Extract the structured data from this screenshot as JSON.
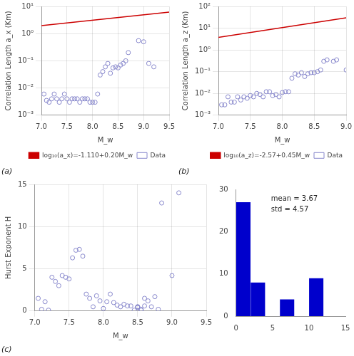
{
  "chart_data": [
    {
      "type": "scatter",
      "xlabel": "M_w",
      "ylabel": "Correlation Length a_x (Km)",
      "log": "y",
      "xlim": [
        7.0,
        9.5
      ],
      "xticks": [
        {
          "value": 7,
          "label": "7.0"
        },
        {
          "value": 7.5,
          "label": "7.5"
        },
        {
          "value": 8,
          "label": "8.0"
        },
        {
          "value": 8.5,
          "label": "8.5"
        },
        {
          "value": 9,
          "label": "9.0"
        },
        {
          "value": 9.5,
          "label": "9.5"
        }
      ],
      "ylim": [
        0.001,
        10
      ],
      "yticks": [
        {
          "value": 0.001,
          "label": "10⁻³"
        },
        {
          "value": 0.01,
          "label": "10⁻²"
        },
        {
          "value": 0.1,
          "label": "10⁻¹"
        },
        {
          "value": 1,
          "label": "10⁰"
        },
        {
          "value": 10,
          "label": "10¹"
        }
      ],
      "grid": true,
      "legend": "lower right",
      "annotations": [
        "(a)"
      ],
      "series": [
        {
          "name": "Data",
          "type": "scatter",
          "marker": "circle",
          "color": "#8888cc",
          "x": [
            7.05,
            7.1,
            7.15,
            7.2,
            7.25,
            7.3,
            7.35,
            7.4,
            7.45,
            7.5,
            7.55,
            7.6,
            7.65,
            7.7,
            7.75,
            7.8,
            7.85,
            7.9,
            7.95,
            8.0,
            8.05,
            8.1,
            8.15,
            8.2,
            8.25,
            8.3,
            8.35,
            8.4,
            8.45,
            8.5,
            8.55,
            8.6,
            8.65,
            8.7,
            8.9,
            9.0,
            9.1,
            9.2
          ],
          "values": [
            0.006,
            0.0035,
            0.003,
            0.004,
            0.006,
            0.004,
            0.003,
            0.004,
            0.006,
            0.004,
            0.003,
            0.004,
            0.004,
            0.004,
            0.003,
            0.004,
            0.004,
            0.004,
            0.003,
            0.003,
            0.003,
            0.006,
            0.03,
            0.04,
            0.06,
            0.08,
            0.035,
            0.055,
            0.06,
            0.055,
            0.07,
            0.08,
            0.1,
            0.2,
            0.55,
            0.5,
            0.08,
            0.06
          ]
        },
        {
          "name": "log₁₀(a_x)=-1.110+0.20M_w",
          "type": "line",
          "line_style": "solid",
          "color": "#cc0000",
          "x": [
            7.0,
            9.5
          ],
          "values": [
            1.949844599758045,
            6.165950018614822
          ]
        }
      ]
    },
    {
      "type": "scatter",
      "xlabel": "M_w",
      "ylabel": "Correlation Length a_z (Km)",
      "log": "y",
      "xlim": [
        7.0,
        9.0
      ],
      "xticks": [
        {
          "value": 7,
          "label": "7.0"
        },
        {
          "value": 7.5,
          "label": "7.5"
        },
        {
          "value": 8,
          "label": "8.0"
        },
        {
          "value": 8.5,
          "label": "8.5"
        },
        {
          "value": 9,
          "label": "9.0"
        }
      ],
      "ylim": [
        0.001,
        100
      ],
      "yticks": [
        {
          "value": 0.001,
          "label": "10⁻³"
        },
        {
          "value": 0.01,
          "label": "10⁻²"
        },
        {
          "value": 0.1,
          "label": "10⁻¹"
        },
        {
          "value": 1,
          "label": "10⁰"
        },
        {
          "value": 10,
          "label": "10¹"
        },
        {
          "value": 100,
          "label": "10²"
        }
      ],
      "grid": true,
      "legend": "lower right",
      "annotations": [
        "(b)"
      ],
      "series": [
        {
          "name": "Data",
          "type": "scatter",
          "marker": "circle",
          "color": "#8888cc",
          "x": [
            7.05,
            7.1,
            7.15,
            7.2,
            7.25,
            7.3,
            7.35,
            7.4,
            7.45,
            7.5,
            7.55,
            7.6,
            7.65,
            7.7,
            7.75,
            7.8,
            7.85,
            7.9,
            7.95,
            8.0,
            8.05,
            8.1,
            8.15,
            8.2,
            8.25,
            8.3,
            8.35,
            8.4,
            8.45,
            8.5,
            8.55,
            8.6,
            8.65,
            8.7,
            8.8,
            8.85,
            9.0
          ],
          "values": [
            0.003,
            0.003,
            0.007,
            0.004,
            0.004,
            0.007,
            0.005,
            0.007,
            0.006,
            0.008,
            0.007,
            0.01,
            0.009,
            0.007,
            0.012,
            0.012,
            0.008,
            0.009,
            0.007,
            0.011,
            0.012,
            0.012,
            0.05,
            0.08,
            0.07,
            0.09,
            0.06,
            0.08,
            0.09,
            0.09,
            0.1,
            0.12,
            0.3,
            0.35,
            0.3,
            0.35,
            0.12
          ]
        },
        {
          "name": "log₁₀(a_z)=-2.57+0.45M_w",
          "type": "line",
          "line_style": "solid",
          "color": "#cc0000",
          "x": [
            7.0,
            9.0
          ],
          "values": [
            3.801893963205612,
            30.19951720402016
          ]
        }
      ]
    },
    {
      "type": "scatter",
      "xlabel": "M_w",
      "ylabel": "Hurst Exponent H",
      "xlim": [
        7.0,
        9.5
      ],
      "xticks": [
        {
          "value": 7,
          "label": "7.0"
        },
        {
          "value": 7.5,
          "label": "7.5"
        },
        {
          "value": 8,
          "label": "8.0"
        },
        {
          "value": 8.5,
          "label": "8.5"
        },
        {
          "value": 9,
          "label": "9.0"
        },
        {
          "value": 9.5,
          "label": "9.5"
        }
      ],
      "ylim": [
        0,
        15
      ],
      "yticks": [
        0,
        5,
        10,
        15
      ],
      "grid": true,
      "annotations": [
        "(c)"
      ],
      "series": [
        {
          "type": "scatter",
          "marker": "circle",
          "color": "#8888cc",
          "x": [
            7.05,
            7.1,
            7.15,
            7.2,
            7.25,
            7.3,
            7.35,
            7.4,
            7.45,
            7.5,
            7.55,
            7.6,
            7.65,
            7.7,
            7.75,
            7.8,
            7.85,
            7.9,
            7.95,
            8.0,
            8.05,
            8.1,
            8.15,
            8.2,
            8.25,
            8.3,
            8.35,
            8.4,
            8.45,
            8.5,
            8.55,
            8.6,
            8.65,
            8.7,
            8.75,
            8.8,
            8.85,
            9.0,
            9.1,
            8.5,
            8.5,
            8.55,
            8.6
          ],
          "values": [
            1.5,
            0.2,
            1.1,
            0.1,
            4.0,
            3.5,
            3.0,
            4.2,
            4.0,
            3.8,
            6.3,
            7.2,
            7.3,
            6.5,
            2.0,
            1.5,
            0.5,
            1.8,
            1.2,
            0.3,
            1.1,
            2.0,
            1.0,
            0.7,
            0.5,
            0.8,
            0.6,
            0.6,
            0.1,
            0.5,
            0.2,
            1.5,
            1.2,
            0.5,
            1.7,
            0.2,
            12.8,
            4.2,
            14.0,
            0.5,
            0.4,
            0.1,
            0.6
          ]
        }
      ]
    },
    {
      "type": "histogram",
      "bins": [
        0,
        2,
        4,
        6,
        8,
        10,
        12,
        14
      ],
      "counts": [
        27,
        8,
        0,
        4,
        0,
        9,
        0
      ],
      "color": "#0000cc",
      "xlim": [
        0,
        15
      ],
      "xticks": [
        0,
        5,
        10,
        15
      ],
      "ylim": [
        0,
        30
      ],
      "yticks": [
        0,
        10,
        20,
        30
      ],
      "grid": false,
      "annotations": [
        "mean = 3.67",
        "std = 4.57"
      ]
    }
  ]
}
